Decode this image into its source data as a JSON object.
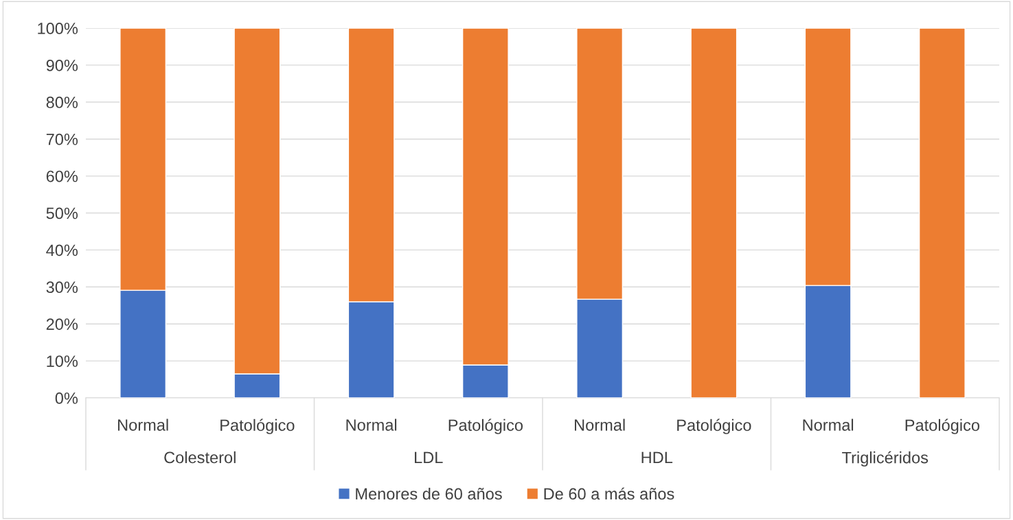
{
  "chart_data": {
    "type": "bar",
    "stacked": true,
    "categories": [
      "Normal",
      "Patológico",
      "Normal",
      "Patológico",
      "Normal",
      "Patológico",
      "Normal",
      "Patológico"
    ],
    "series": [
      {
        "name": "Menores de 60 años",
        "color": "#4472c4",
        "values": [
          29.1,
          6.5,
          26.0,
          8.9,
          26.7,
          0,
          30.4,
          0
        ]
      },
      {
        "name": "De 60 a más años",
        "color": "#ed7d31",
        "values": [
          70.9,
          93.5,
          74.0,
          91.1,
          73.3,
          100,
          69.6,
          100
        ]
      }
    ],
    "annotations": [
      "Colesterol",
      "LDL",
      "HDL",
      "Triglicéridos"
    ],
    "ylim": [
      0,
      100
    ],
    "yticks": [
      {
        "value": 0,
        "label": "0%"
      },
      {
        "value": 10,
        "label": "10%"
      },
      {
        "value": 20,
        "label": "20%"
      },
      {
        "value": 30,
        "label": "30%"
      },
      {
        "value": 40,
        "label": "40%"
      },
      {
        "value": 50,
        "label": "50%"
      },
      {
        "value": 60,
        "label": "60%"
      },
      {
        "value": 70,
        "label": "70%"
      },
      {
        "value": 80,
        "label": "80%"
      },
      {
        "value": 90,
        "label": "90%"
      },
      {
        "value": 100,
        "label": "100%"
      }
    ],
    "grid": "y",
    "legend": "bottom"
  }
}
